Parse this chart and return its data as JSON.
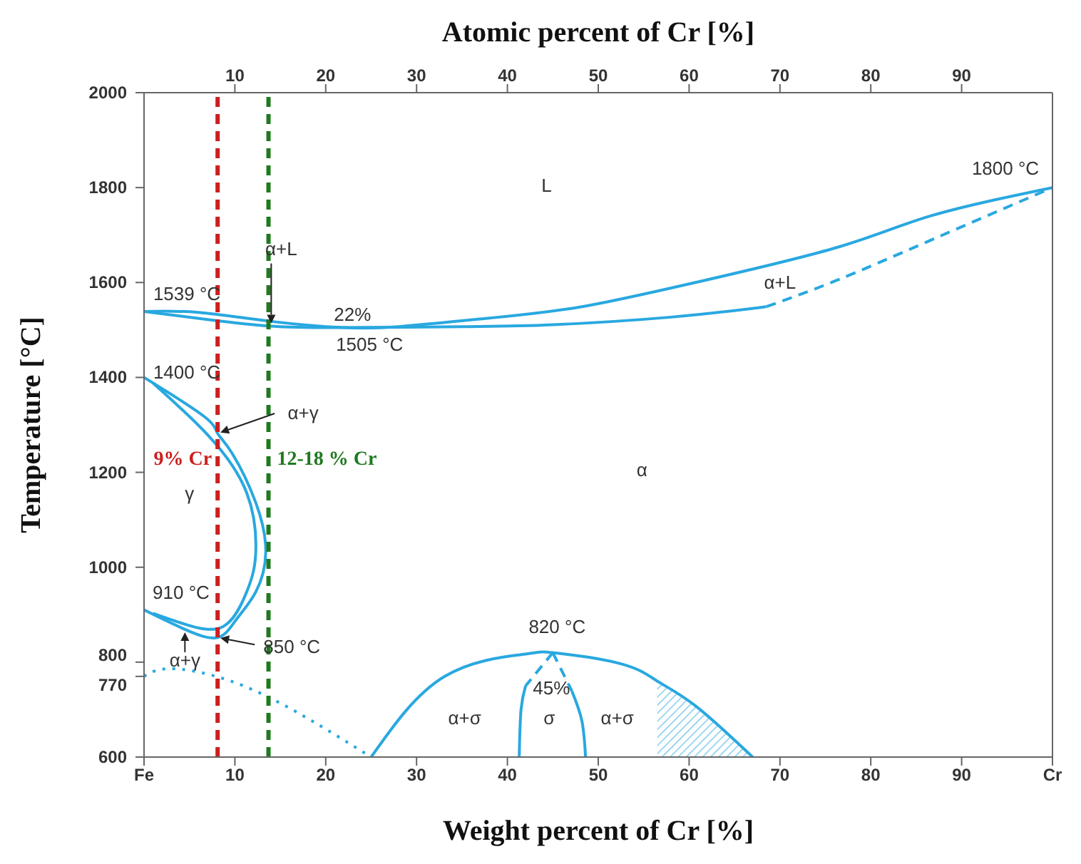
{
  "chart_data": {
    "type": "line",
    "xlabel": "Weight percent of Cr [%]",
    "x2label": "Atomic percent of Cr [%]",
    "ylabel": "Temperature [°C]",
    "xlim": [
      0,
      100
    ],
    "xticks": [
      {
        "value": 0,
        "label": "Fe"
      },
      10,
      20,
      30,
      40,
      50,
      60,
      70,
      80,
      90,
      {
        "value": 100,
        "label": "Cr"
      }
    ],
    "x2lim": [
      0,
      100
    ],
    "x2ticks": [
      10,
      20,
      30,
      40,
      50,
      60,
      70,
      80,
      90
    ],
    "ylim": [
      600,
      2000
    ],
    "yticks": [
      600,
      770,
      800,
      1000,
      1200,
      1400,
      1600,
      1800,
      2000
    ],
    "grid": false,
    "series": [
      {
        "color": "#29a8e0",
        "line_style": "solid",
        "x": [
          0,
          6,
          14,
          22,
          28,
          38,
          48.2,
          60.7,
          76.3,
          86.7,
          100
        ],
        "values": [
          1539,
          1537,
          1518,
          1505,
          1507,
          1525,
          1549,
          1600,
          1674,
          1741,
          1800
        ]
      },
      {
        "color": "#29a8e0",
        "line_style": "solid",
        "x": [
          0,
          7,
          14,
          22,
          35,
          45,
          58,
          68.5
        ],
        "values": [
          1539,
          1522,
          1508,
          1505,
          1507,
          1511,
          1527,
          1549
        ]
      },
      {
        "color": "#29a8e0",
        "line_style": "dashed",
        "x": [
          68.5,
          76.3,
          86.7,
          100
        ],
        "values": [
          1549,
          1605,
          1690,
          1800
        ]
      },
      {
        "color": "#29a8e0",
        "line_style": "solid",
        "x": [
          0,
          6.6,
          8.1,
          9.7,
          12.3,
          13.4,
          12.3,
          10.2,
          8.1,
          4.5,
          0
        ],
        "values": [
          1400,
          1318,
          1282,
          1240,
          1136,
          1032,
          948,
          891,
          852,
          869,
          910
        ]
      },
      {
        "color": "#29a8e0",
        "line_style": "solid",
        "x": [
          1,
          7.1,
          11.3,
          12.3,
          11.3,
          8.7,
          4.5,
          1
        ],
        "values": [
          1388,
          1277,
          1157,
          1032,
          948,
          875,
          880,
          903
        ]
      },
      {
        "color": "#29a8e0",
        "line_style": "dotted",
        "x": [
          0,
          3.4,
          12.3,
          25
        ],
        "values": [
          770,
          786,
          739,
          600
        ]
      },
      {
        "color": "#29a8e0",
        "line_style": "solid",
        "x": [
          25,
          33.1,
          42,
          45,
          52.4,
          56.5,
          60.7,
          67
        ],
        "values": [
          600,
          770,
          817,
          820,
          797,
          760,
          708,
          600
        ]
      },
      {
        "color": "#29a8e0",
        "line_style": "dashed",
        "x": [
          45,
          42
        ],
        "values": [
          820,
          750
        ]
      },
      {
        "color": "#29a8e0",
        "line_style": "solid",
        "x": [
          42,
          41.5,
          41.3
        ],
        "values": [
          750,
          700,
          600
        ]
      },
      {
        "color": "#29a8e0",
        "line_style": "dashed",
        "x": [
          45,
          47.1
        ],
        "values": [
          820,
          739
        ]
      },
      {
        "color": "#29a8e0",
        "line_style": "solid",
        "x": [
          47.1,
          48.2,
          48.6
        ],
        "values": [
          739,
          676,
          600
        ]
      },
      {
        "type": "area",
        "color": "#29a8e0",
        "x": [
          56.5,
          60.7,
          67
        ],
        "values": [
          760,
          708,
          600
        ]
      }
    ],
    "ref_lines": [
      {
        "axis": "x",
        "value": 8.1,
        "label": "9% Cr",
        "color": "#cc1f1f",
        "line_style": "dashed"
      },
      {
        "axis": "x",
        "value": 13.7,
        "label": "12-18 % Cr",
        "color": "#1f7a1f",
        "line_style": "dashed"
      }
    ],
    "annotations": [
      "L",
      {
        "text": "1800 °C",
        "x": 100,
        "y": 1800
      },
      {
        "text": "α+L",
        "x": 14,
        "y": 1508
      },
      {
        "text": "1539 °C",
        "x": 0,
        "y": 1539
      },
      {
        "text": "22%",
        "x": 22,
        "y": 1505
      },
      {
        "text": "1505 °C",
        "x": 22,
        "y": 1505
      },
      "α+L",
      {
        "text": "1400 °C",
        "x": 0,
        "y": 1400
      },
      {
        "text": "α+γ",
        "x": 8.1,
        "y": 1282
      },
      "γ",
      "α",
      {
        "text": "910 °C",
        "x": 0,
        "y": 910
      },
      {
        "text": "850 °C",
        "x": 8.1,
        "y": 852
      },
      {
        "text": "α+γ",
        "x": 4.5,
        "y": 869
      },
      {
        "text": "820 °C",
        "x": 45,
        "y": 820
      },
      {
        "text": "45%",
        "x": 45,
        "y": 820
      },
      "σ",
      "α+σ",
      "α+σ"
    ]
  }
}
